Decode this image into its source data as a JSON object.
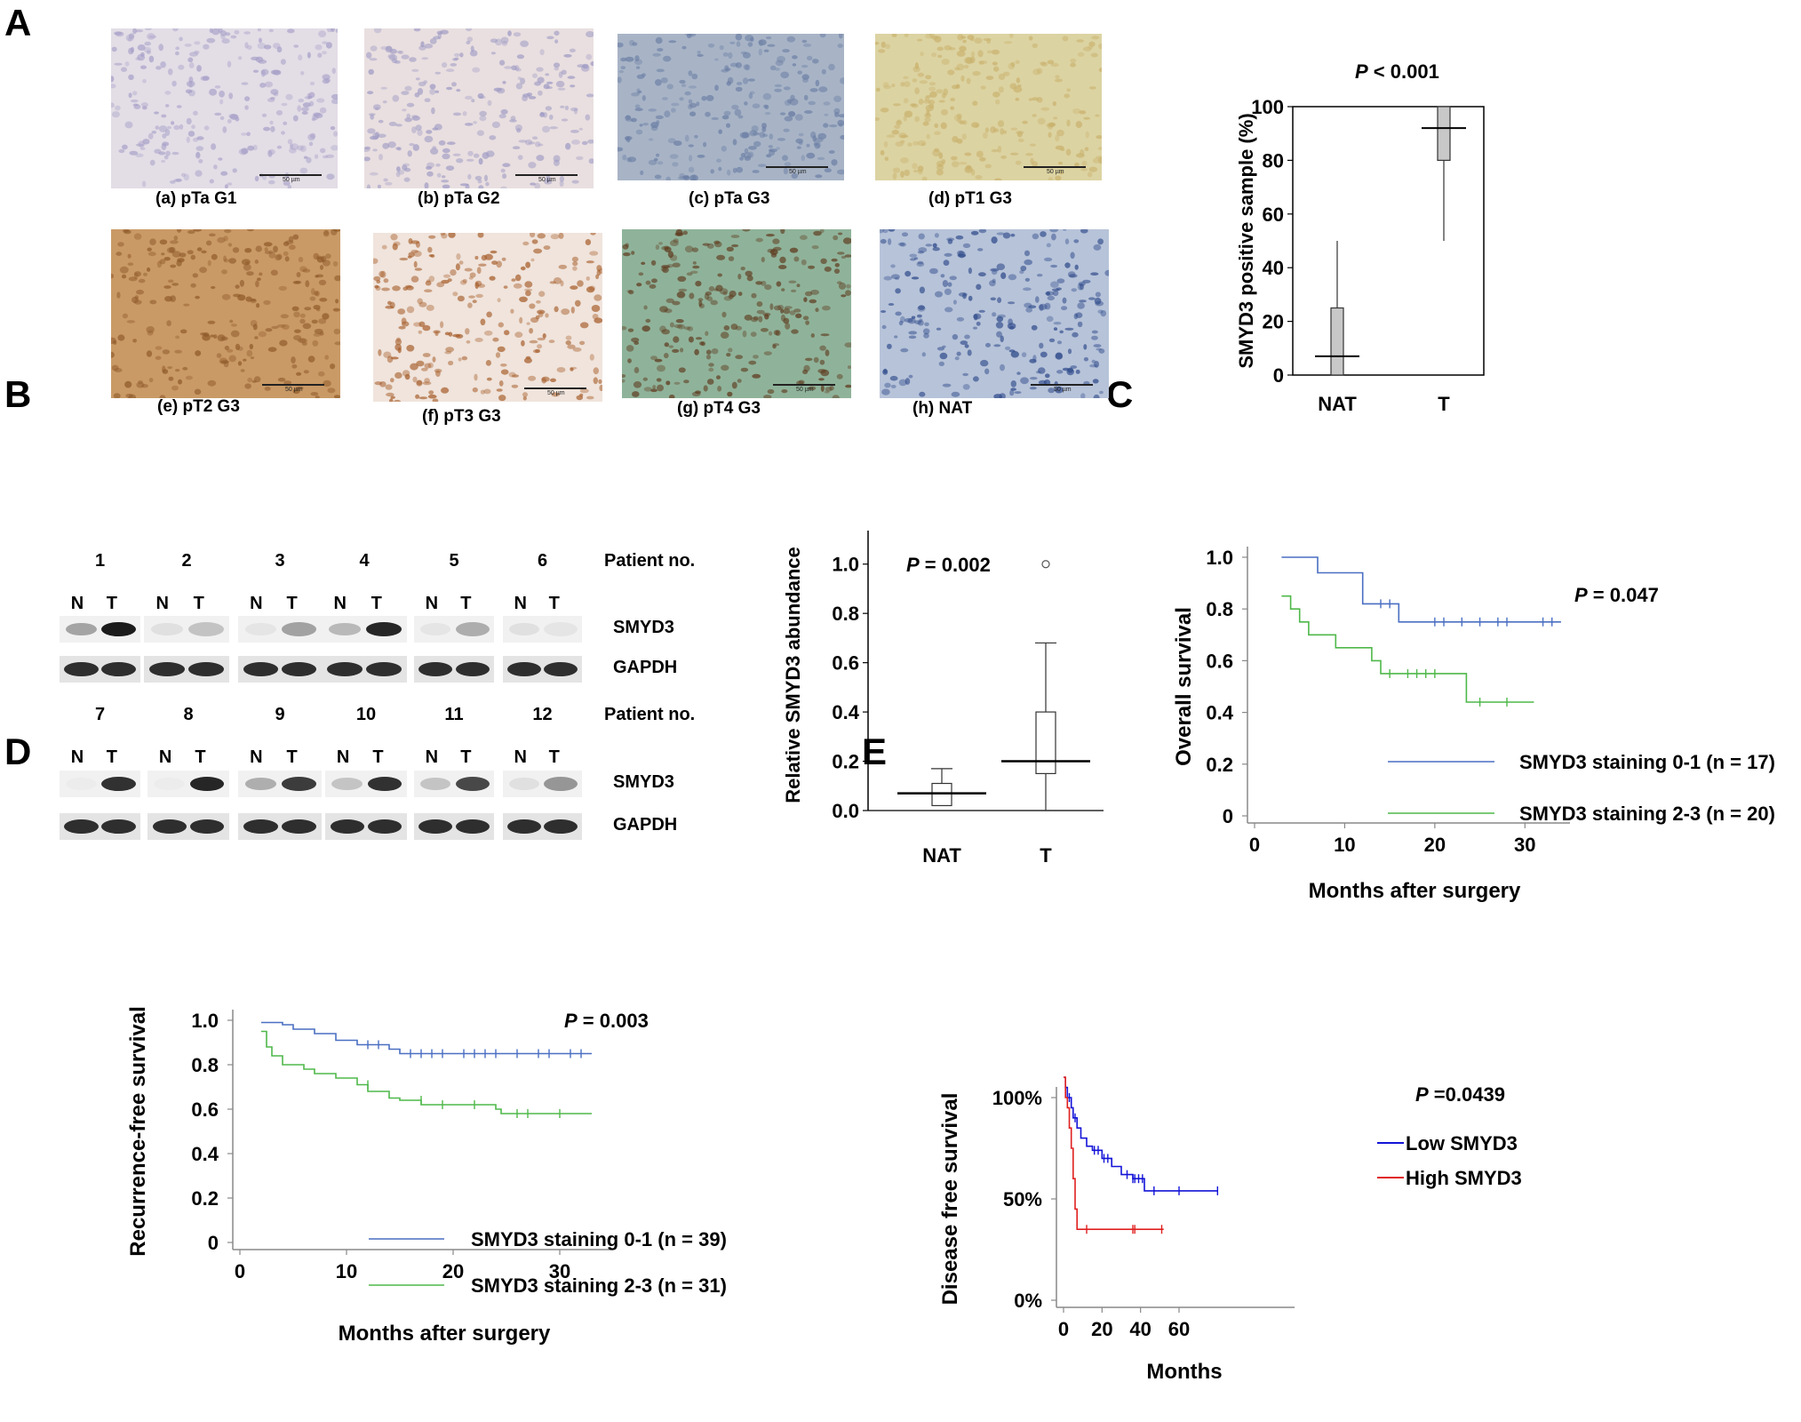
{
  "panels": {
    "A": "A",
    "B": "B",
    "C": "C",
    "D": "D",
    "E": "E"
  },
  "micrographs": [
    {
      "label": "(a) pTa G1",
      "scale": "50 µm",
      "bg": "#e3dde6",
      "cell": "#a7a0c8"
    },
    {
      "label": "(b) pTa G2",
      "scale": "50 µm",
      "bg": "#e9dfe0",
      "cell": "#9f9bc4"
    },
    {
      "label": "(c) pTa G3",
      "scale": "50 µm",
      "bg": "#a8b4c6",
      "cell": "#6c7fa5"
    },
    {
      "label": "(d) pT1 G3",
      "scale": "50 µm",
      "bg": "#dcd3a2",
      "cell": "#c9b16c"
    },
    {
      "label": "(e) pT2 G3",
      "scale": "50 µm",
      "bg": "#c99a66",
      "cell": "#8f5a2a"
    },
    {
      "label": "(f) pT3 G3",
      "scale": "50 µm",
      "bg": "#f0e4dc",
      "cell": "#a75f2c"
    },
    {
      "label": "(g) pT4 G3",
      "scale": "50 µm",
      "bg": "#8fb39a",
      "cell": "#5e3a1e"
    },
    {
      "label": "(h) NAT",
      "scale": "50 µm",
      "bg": "#b7c3d9",
      "cell": "#2e4a8a"
    }
  ],
  "blots": {
    "rows": [
      {
        "patients": [
          "1",
          "2",
          "3",
          "4",
          "5",
          "6"
        ],
        "smyd3_N": [
          0.35,
          0.08,
          0.05,
          0.25,
          0.05,
          0.08
        ],
        "smyd3_T": [
          0.95,
          0.2,
          0.35,
          0.9,
          0.3,
          0.05
        ]
      },
      {
        "patients": [
          "7",
          "8",
          "9",
          "10",
          "11",
          "12"
        ],
        "smyd3_N": [
          0.02,
          0.02,
          0.3,
          0.2,
          0.2,
          0.08
        ],
        "smyd3_T": [
          0.85,
          0.9,
          0.8,
          0.85,
          0.75,
          0.4
        ]
      }
    ],
    "N_label": "N",
    "T_label": "T",
    "patient_label": "Patient no.",
    "protein1": "SMYD3",
    "protein2": "GAPDH"
  },
  "chart_data": [
    {
      "type": "box",
      "id": "A-box",
      "title": "P < 0.001",
      "p_italic": "P",
      "p_rest": " < 0.001",
      "ylabel": "SMYD3 positive sample (%)",
      "categories": [
        "NAT",
        "T"
      ],
      "boxes": [
        {
          "min": 0,
          "q1": 0,
          "median": 7,
          "q3": 25,
          "max": 50
        },
        {
          "min": 50,
          "q1": 80,
          "median": 92,
          "q3": 100,
          "max": 100
        }
      ],
      "ylim": [
        0,
        100
      ],
      "yticks": [
        0,
        20,
        40,
        60,
        80,
        100
      ],
      "box_color": "#c8c8c8"
    },
    {
      "type": "box",
      "id": "B-box",
      "p_italic": "P",
      "p_rest": " = 0.002",
      "ylabel": "Relative  SMYD3 abundance",
      "categories": [
        "NAT",
        "T"
      ],
      "boxes": [
        {
          "min": 0.02,
          "q1": 0.02,
          "median": 0.07,
          "q3": 0.11,
          "max": 0.17
        },
        {
          "min": 0.0,
          "q1": 0.15,
          "median": 0.2,
          "q3": 0.4,
          "max": 0.68
        }
      ],
      "outliers": [
        {
          "category": "T",
          "value": 1.0
        }
      ],
      "ylim": [
        0,
        1.1
      ],
      "yticks": [
        "0.0",
        "0.2",
        "0.4",
        "0.6",
        "0.8",
        "1.0"
      ]
    },
    {
      "type": "line",
      "id": "C-km",
      "p_italic": "P",
      "p_rest": " = 0.047",
      "ylabel": "Overall survival",
      "xlabel": "Months after surgery",
      "xlim": [
        0,
        35
      ],
      "ylim": [
        0,
        1.0
      ],
      "xticks": [
        "0",
        "10",
        "20",
        "30"
      ],
      "yticks": [
        "0",
        "0.2",
        "0.4",
        "0.6",
        "0.8",
        "1.0"
      ],
      "legend_position": "bottom-right",
      "series": [
        {
          "name": "SMYD3 staining 0-1 (n = 17)",
          "color": "#4a6fc2",
          "steps": [
            [
              3,
              1.0
            ],
            [
              7,
              0.94
            ],
            [
              12,
              0.82
            ],
            [
              16,
              0.75
            ],
            [
              34,
              0.75
            ]
          ],
          "censors": [
            [
              14,
              0.82
            ],
            [
              15,
              0.82
            ],
            [
              20,
              0.75
            ],
            [
              21,
              0.75
            ],
            [
              23,
              0.75
            ],
            [
              25,
              0.75
            ],
            [
              27,
              0.75
            ],
            [
              28,
              0.75
            ],
            [
              32,
              0.75
            ],
            [
              33,
              0.75
            ]
          ]
        },
        {
          "name": "SMYD3 staining 2-3 (n = 20)",
          "color": "#4fb84a",
          "steps": [
            [
              3,
              0.85
            ],
            [
              4,
              0.8
            ],
            [
              5,
              0.75
            ],
            [
              6,
              0.7
            ],
            [
              9,
              0.65
            ],
            [
              13,
              0.6
            ],
            [
              14,
              0.55
            ],
            [
              23.5,
              0.44
            ],
            [
              31,
              0.44
            ]
          ],
          "censors": [
            [
              15,
              0.55
            ],
            [
              17,
              0.55
            ],
            [
              18,
              0.55
            ],
            [
              19,
              0.55
            ],
            [
              20,
              0.55
            ],
            [
              25,
              0.44
            ],
            [
              28,
              0.44
            ]
          ]
        }
      ]
    },
    {
      "type": "line",
      "id": "D-km",
      "p_italic": "P",
      "p_rest": " = 0.003",
      "ylabel": "Recurrence-free survival",
      "xlabel": "Months after surgery",
      "xlim": [
        0,
        35
      ],
      "ylim": [
        0,
        1.0
      ],
      "xticks": [
        "0",
        "10",
        "20",
        "30"
      ],
      "yticks": [
        "0",
        "0.2",
        "0.4",
        "0.6",
        "0.8",
        "1.0"
      ],
      "legend_position": "bottom-right",
      "series": [
        {
          "name": "SMYD3 staining 0-1 (n = 39)",
          "color": "#4a6fc2",
          "steps": [
            [
              2,
              0.99
            ],
            [
              4,
              0.98
            ],
            [
              5,
              0.96
            ],
            [
              7,
              0.94
            ],
            [
              9,
              0.91
            ],
            [
              11,
              0.89
            ],
            [
              14,
              0.87
            ],
            [
              15,
              0.85
            ],
            [
              33,
              0.85
            ]
          ],
          "censors": [
            [
              12,
              0.89
            ],
            [
              13,
              0.89
            ],
            [
              16,
              0.85
            ],
            [
              17,
              0.85
            ],
            [
              18,
              0.85
            ],
            [
              19,
              0.85
            ],
            [
              21,
              0.85
            ],
            [
              22,
              0.85
            ],
            [
              23,
              0.85
            ],
            [
              24,
              0.85
            ],
            [
              26,
              0.85
            ],
            [
              28,
              0.85
            ],
            [
              29,
              0.85
            ],
            [
              31,
              0.85
            ],
            [
              32,
              0.85
            ]
          ]
        },
        {
          "name": "SMYD3 staining 2-3 (n = 31)",
          "color": "#4fb84a",
          "steps": [
            [
              2,
              0.95
            ],
            [
              2.5,
              0.88
            ],
            [
              3,
              0.84
            ],
            [
              4,
              0.8
            ],
            [
              6,
              0.78
            ],
            [
              7,
              0.76
            ],
            [
              9,
              0.74
            ],
            [
              11,
              0.71
            ],
            [
              12,
              0.68
            ],
            [
              14,
              0.65
            ],
            [
              15,
              0.64
            ],
            [
              17,
              0.62
            ],
            [
              24,
              0.6
            ],
            [
              24.5,
              0.58
            ],
            [
              33,
              0.58
            ]
          ],
          "censors": [
            [
              12,
              0.71
            ],
            [
              17,
              0.64
            ],
            [
              19,
              0.62
            ],
            [
              22,
              0.62
            ],
            [
              26,
              0.58
            ],
            [
              27,
              0.58
            ],
            [
              30,
              0.58
            ]
          ]
        }
      ]
    },
    {
      "type": "line",
      "id": "E-km",
      "p_italic": "P",
      "p_rest": " =0.0439",
      "ylabel": "Disease free survival",
      "xlabel": "Months",
      "xlim": [
        0,
        120
      ],
      "ylim": [
        0,
        1.0
      ],
      "xticks": [
        "0",
        "20",
        "40",
        "60"
      ],
      "yticks": [
        "0%",
        "50%",
        "100%"
      ],
      "legend_position": "top-right",
      "series": [
        {
          "name": "Low SMYD3",
          "color": "#1414d8",
          "steps": [
            [
              0,
              1.1
            ],
            [
              1,
              1.05
            ],
            [
              2,
              1.0
            ],
            [
              4,
              0.95
            ],
            [
              5,
              0.9
            ],
            [
              7,
              0.85
            ],
            [
              9,
              0.8
            ],
            [
              12,
              0.76
            ],
            [
              15,
              0.74
            ],
            [
              20,
              0.7
            ],
            [
              25,
              0.66
            ],
            [
              30,
              0.62
            ],
            [
              36,
              0.6
            ],
            [
              40,
              0.6
            ],
            [
              42,
              0.54
            ],
            [
              80,
              0.54
            ]
          ],
          "censors": [
            [
              3,
              1.0
            ],
            [
              6,
              0.9
            ],
            [
              16,
              0.74
            ],
            [
              18,
              0.74
            ],
            [
              21,
              0.7
            ],
            [
              23,
              0.7
            ],
            [
              33,
              0.62
            ],
            [
              36,
              0.6
            ],
            [
              37,
              0.6
            ],
            [
              39,
              0.6
            ],
            [
              41,
              0.6
            ],
            [
              47,
              0.54
            ],
            [
              60,
              0.54
            ],
            [
              80,
              0.54
            ]
          ]
        },
        {
          "name": "High SMYD3",
          "color": "#e02020",
          "steps": [
            [
              0,
              1.1
            ],
            [
              1,
              1.0
            ],
            [
              2,
              0.95
            ],
            [
              3,
              0.85
            ],
            [
              4,
              0.75
            ],
            [
              5,
              0.6
            ],
            [
              6,
              0.45
            ],
            [
              7,
              0.35
            ],
            [
              52,
              0.35
            ]
          ],
          "censors": [
            [
              12,
              0.35
            ],
            [
              36,
              0.35
            ],
            [
              37,
              0.35
            ],
            [
              51,
              0.35
            ]
          ]
        }
      ]
    }
  ]
}
